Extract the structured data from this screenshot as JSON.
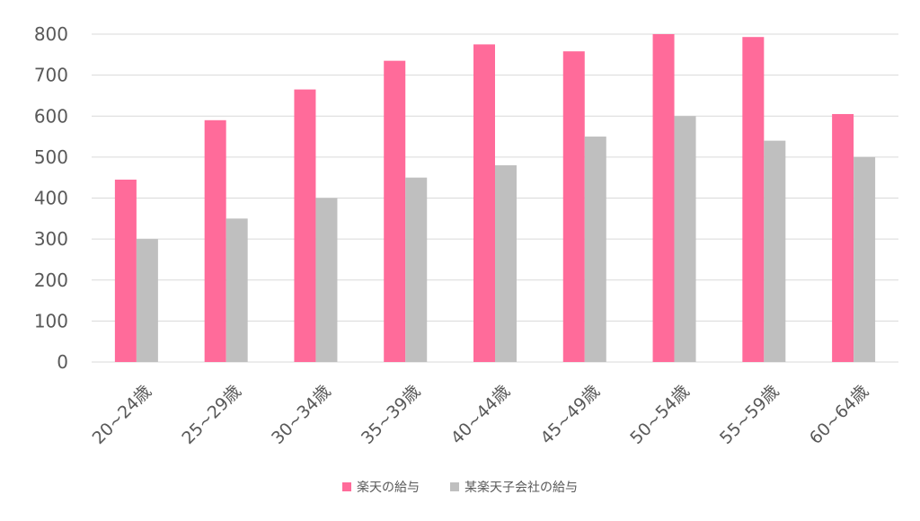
{
  "chart_data": {
    "type": "bar",
    "categories": [
      "20~24歳",
      "25~29歳",
      "30~34歳",
      "35~39歳",
      "40~44歳",
      "45~49歳",
      "50~54歳",
      "55~59歳",
      "60~64歳"
    ],
    "series": [
      {
        "name": "楽天の給与",
        "values": [
          445,
          590,
          665,
          735,
          775,
          758,
          800,
          793,
          605
        ],
        "color": "#ff6b9a"
      },
      {
        "name": "某楽天子会社の給与",
        "values": [
          300,
          350,
          400,
          450,
          480,
          550,
          600,
          540,
          500
        ],
        "color": "#bfbfbf"
      }
    ],
    "ylim": [
      0,
      800
    ],
    "yticks": [
      0,
      100,
      200,
      300,
      400,
      500,
      600,
      700,
      800
    ],
    "grid": true,
    "legend_position": "bottom",
    "title": "",
    "xlabel": "",
    "ylabel": ""
  }
}
